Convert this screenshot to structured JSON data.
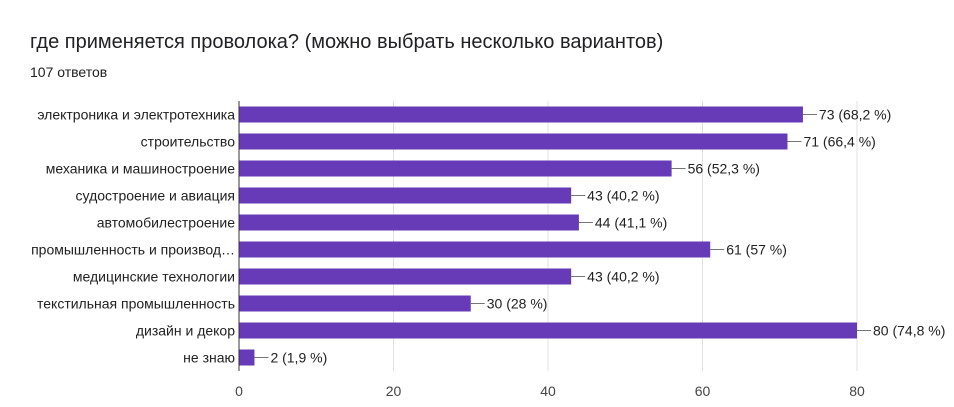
{
  "header": {
    "title": "где применяется проволока? (можно выбрать несколько вариантов)",
    "responses": "107 ответов"
  },
  "chart_data": {
    "type": "bar",
    "orientation": "horizontal",
    "categories": [
      "электроника и электротехника",
      "строительство",
      "механика и машиностроение",
      "судостроение и авиация",
      "автомобилестроение",
      "промышленность и производ…",
      "медицинские технологии",
      "текстильная промышленность",
      "дизайн и декор",
      "не знаю"
    ],
    "values": [
      73,
      71,
      56,
      43,
      44,
      61,
      43,
      30,
      80,
      2
    ],
    "value_labels": [
      "73 (68,2 %)",
      "71 (66,4 %)",
      "56 (52,3 %)",
      "43 (40,2 %)",
      "44 (41,1 %)",
      "61 (57 %)",
      "43 (40,2 %)",
      "30 (28 %)",
      "80 (74,8 %)",
      "2 (1,9 %)"
    ],
    "xlim": [
      0,
      80
    ],
    "xticks": [
      "0",
      "20",
      "40",
      "60",
      "80"
    ],
    "grid": true,
    "bar_color": "#673ab7"
  }
}
